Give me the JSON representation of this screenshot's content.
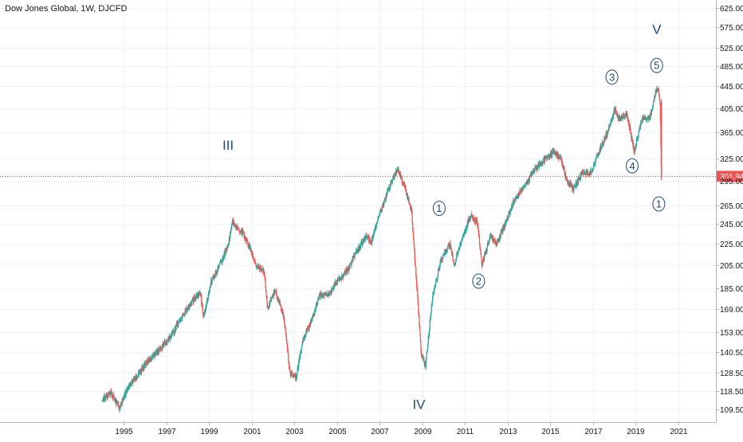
{
  "chart_data": {
    "type": "candlestick",
    "title": "Dow Jones Global, 1W, DJCFD",
    "last_price_label": "301.94",
    "colors": {
      "up": "#26a69a",
      "down": "#ef5350",
      "last_line": "#ef5350",
      "wave_label": "#1e4a7b"
    },
    "x_ticks": [
      "1995",
      "1997",
      "1999",
      "2001",
      "2003",
      "2005",
      "2007",
      "2009",
      "2011",
      "2013",
      "2015",
      "2017",
      "2019",
      "2021"
    ],
    "y_ticks": [
      "625.00",
      "575.00",
      "525.00",
      "485.00",
      "445.00",
      "405.00",
      "365.00",
      "325.00",
      "295.00",
      "265.00",
      "245.00",
      "225.00",
      "205.00",
      "185.00",
      "169.00",
      "153.00",
      "140.50",
      "128.50",
      "118.50",
      "109.50"
    ],
    "price_path": [
      [
        1994.0,
        114
      ],
      [
        1994.4,
        118
      ],
      [
        1994.8,
        110
      ],
      [
        1995.2,
        120
      ],
      [
        1995.7,
        128
      ],
      [
        1996.2,
        136
      ],
      [
        1996.7,
        142
      ],
      [
        1997.2,
        150
      ],
      [
        1997.7,
        163
      ],
      [
        1998.2,
        175
      ],
      [
        1998.6,
        182
      ],
      [
        1998.75,
        163
      ],
      [
        1999.1,
        190
      ],
      [
        1999.5,
        205
      ],
      [
        1999.9,
        222
      ],
      [
        2000.1,
        248
      ],
      [
        2000.3,
        240
      ],
      [
        2000.6,
        235
      ],
      [
        2000.9,
        222
      ],
      [
        2001.2,
        205
      ],
      [
        2001.6,
        198
      ],
      [
        2001.75,
        170
      ],
      [
        2002.1,
        183
      ],
      [
        2002.5,
        165
      ],
      [
        2002.8,
        128
      ],
      [
        2003.1,
        126
      ],
      [
        2003.4,
        148
      ],
      [
        2003.8,
        160
      ],
      [
        2004.2,
        180
      ],
      [
        2004.6,
        180
      ],
      [
        2005.0,
        190
      ],
      [
        2005.5,
        200
      ],
      [
        2006.0,
        220
      ],
      [
        2006.4,
        232
      ],
      [
        2006.6,
        225
      ],
      [
        2007.0,
        255
      ],
      [
        2007.5,
        290
      ],
      [
        2007.85,
        312
      ],
      [
        2008.2,
        285
      ],
      [
        2008.5,
        260
      ],
      [
        2008.8,
        175
      ],
      [
        2008.95,
        140
      ],
      [
        2009.15,
        132
      ],
      [
        2009.5,
        180
      ],
      [
        2009.9,
        210
      ],
      [
        2010.3,
        225
      ],
      [
        2010.5,
        205
      ],
      [
        2010.9,
        232
      ],
      [
        2011.3,
        255
      ],
      [
        2011.6,
        245
      ],
      [
        2011.8,
        205
      ],
      [
        2012.2,
        232
      ],
      [
        2012.5,
        225
      ],
      [
        2012.9,
        245
      ],
      [
        2013.3,
        270
      ],
      [
        2013.8,
        290
      ],
      [
        2014.3,
        310
      ],
      [
        2014.8,
        325
      ],
      [
        2015.2,
        335
      ],
      [
        2015.5,
        325
      ],
      [
        2015.8,
        295
      ],
      [
        2016.1,
        285
      ],
      [
        2016.5,
        305
      ],
      [
        2016.9,
        305
      ],
      [
        2017.3,
        335
      ],
      [
        2017.7,
        365
      ],
      [
        2018.05,
        405
      ],
      [
        2018.2,
        385
      ],
      [
        2018.6,
        395
      ],
      [
        2018.95,
        335
      ],
      [
        2019.3,
        385
      ],
      [
        2019.7,
        390
      ],
      [
        2019.9,
        425
      ],
      [
        2020.05,
        445
      ],
      [
        2020.15,
        420
      ],
      [
        2020.22,
        302
      ]
    ],
    "wave_labels": [
      {
        "text": "III",
        "x": 1999.9,
        "y": 345,
        "circled": false
      },
      {
        "text": "IV",
        "x": 2008.85,
        "y": 112,
        "circled": false
      },
      {
        "text": "V",
        "x": 2020.0,
        "y": 570,
        "circled": false
      },
      {
        "text": "1",
        "x": 2009.8,
        "y": 262,
        "circled": true
      },
      {
        "text": "2",
        "x": 2011.65,
        "y": 191,
        "circled": true
      },
      {
        "text": "3",
        "x": 2017.9,
        "y": 463,
        "circled": true
      },
      {
        "text": "4",
        "x": 2018.85,
        "y": 315,
        "circled": true
      },
      {
        "text": "5",
        "x": 2020.0,
        "y": 487,
        "circled": true
      },
      {
        "text": "1",
        "x": 2020.1,
        "y": 267,
        "circled": true
      }
    ]
  }
}
